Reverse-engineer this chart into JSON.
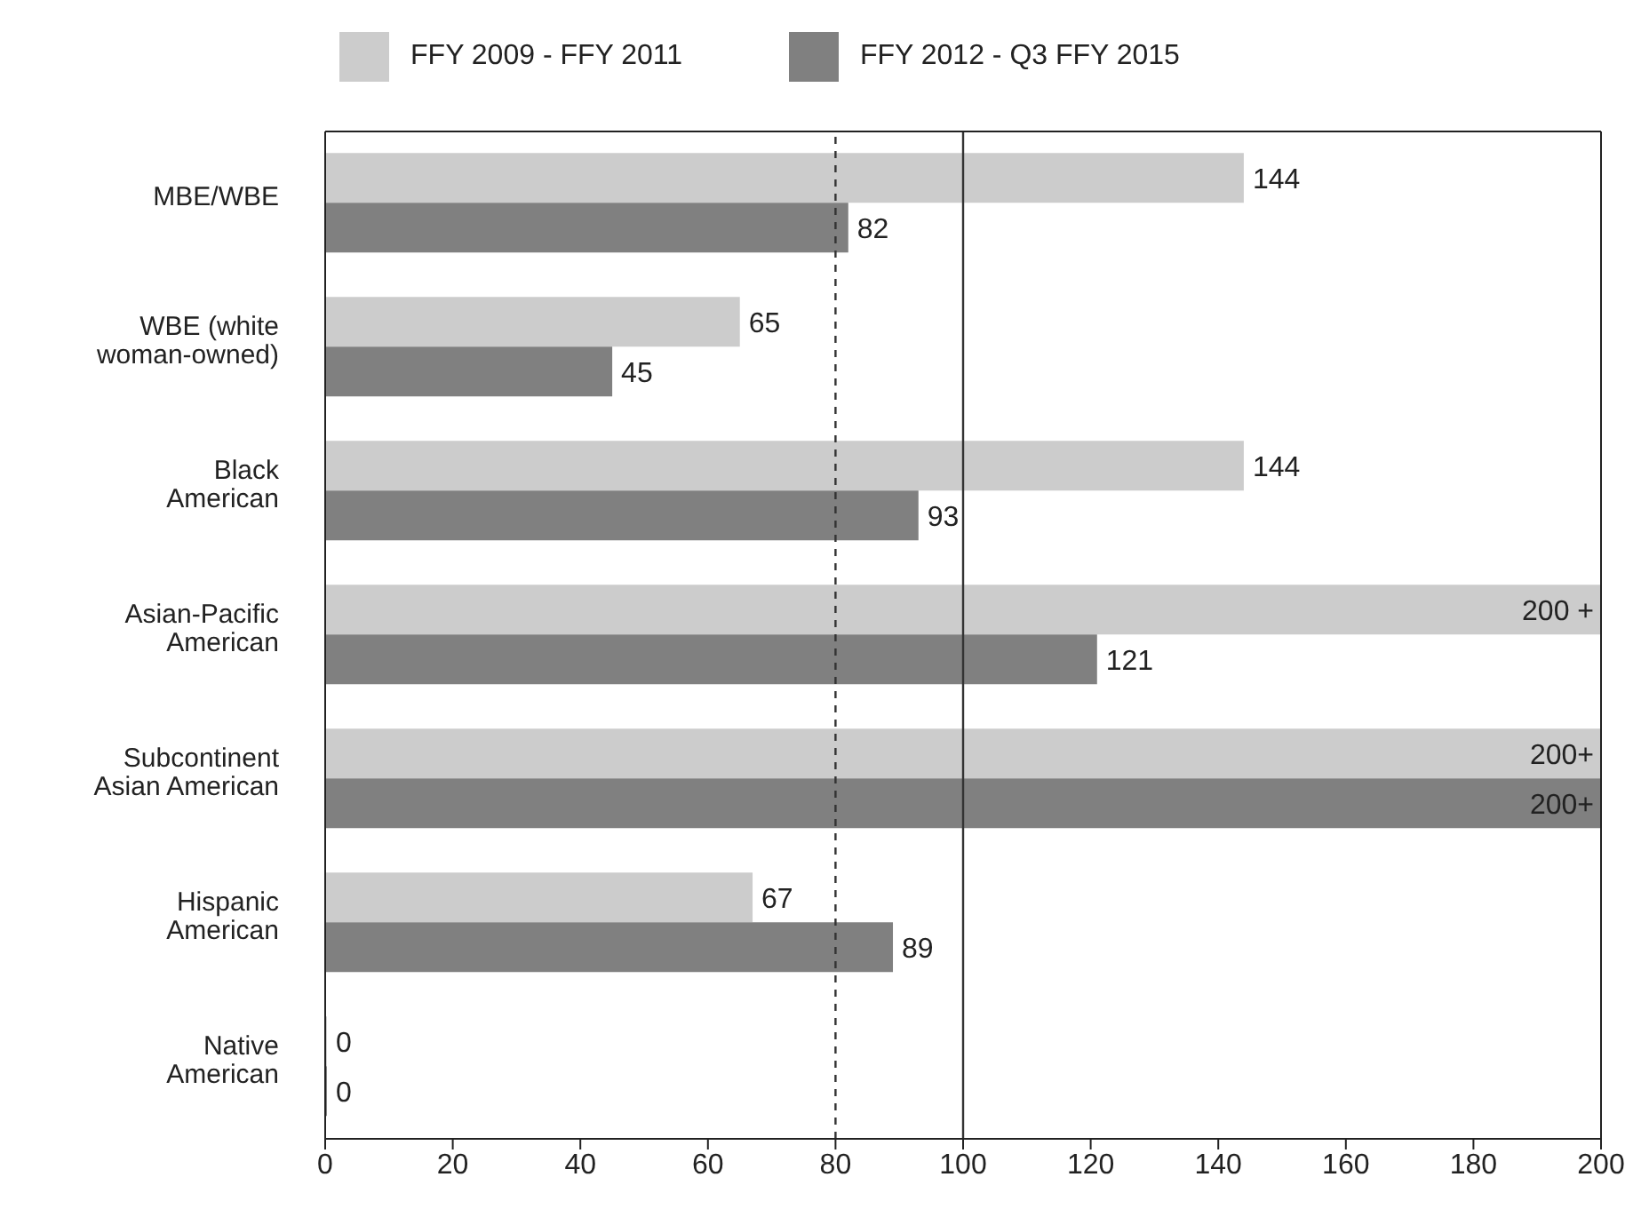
{
  "chart_data": {
    "type": "bar",
    "orientation": "horizontal",
    "categories": [
      "MBE/WBE",
      "WBE (white\nwoman-owned)",
      "Black\nAmerican",
      "Asian-Pacific\nAmerican",
      "Subcontinent\nAsian American",
      "Hispanic\nAmerican",
      "Native\nAmerican"
    ],
    "series": [
      {
        "name": "FFY 2009 - FFY 2011",
        "color": "#cccccc",
        "values": [
          144,
          65,
          144,
          200,
          200,
          67,
          0
        ],
        "value_labels": [
          "144",
          "65",
          "144",
          "200 +",
          "200+",
          "67",
          "0"
        ]
      },
      {
        "name": "FFY 2012 - Q3 FFY 2015",
        "color": "#808080",
        "values": [
          82,
          45,
          93,
          121,
          200,
          89,
          0
        ],
        "value_labels": [
          "82",
          "45",
          "93",
          "121",
          "200+",
          "89",
          "0"
        ]
      }
    ],
    "xlim": [
      0,
      200
    ],
    "xticks": [
      0,
      20,
      40,
      60,
      80,
      100,
      120,
      140,
      160,
      180,
      200
    ],
    "ref_lines": [
      {
        "axis": "x",
        "value": 80,
        "line_style": "dashed",
        "color": "#333333"
      },
      {
        "axis": "x",
        "value": 100,
        "line_style": "solid",
        "color": "#333333"
      }
    ],
    "grid": false,
    "legend": "top"
  }
}
